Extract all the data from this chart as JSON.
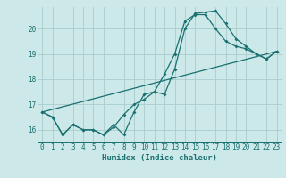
{
  "xlabel": "Humidex (Indice chaleur)",
  "bg_color": "#cce8e8",
  "grid_color": "#aacccc",
  "line_color": "#1a7070",
  "xlim": [
    -0.5,
    23.5
  ],
  "ylim": [
    15.5,
    20.85
  ],
  "yticks": [
    16,
    17,
    18,
    19,
    20
  ],
  "xticks": [
    0,
    1,
    2,
    3,
    4,
    5,
    6,
    7,
    8,
    9,
    10,
    11,
    12,
    13,
    14,
    15,
    16,
    17,
    18,
    19,
    20,
    21,
    22,
    23
  ],
  "line1_x": [
    0,
    1,
    2,
    3,
    4,
    5,
    6,
    7,
    8,
    9,
    10,
    11,
    12,
    13,
    14,
    15,
    16,
    17,
    18,
    19,
    20,
    21,
    22,
    23
  ],
  "line1_y": [
    16.7,
    16.5,
    15.8,
    16.2,
    16.0,
    16.0,
    15.8,
    16.2,
    15.8,
    16.7,
    17.4,
    17.5,
    17.4,
    18.4,
    20.0,
    20.6,
    20.65,
    20.7,
    20.2,
    19.6,
    19.3,
    19.0,
    18.8,
    19.1
  ],
  "line2_x": [
    0,
    1,
    2,
    3,
    4,
    5,
    6,
    7,
    8,
    9,
    10,
    11,
    12,
    13,
    14,
    15,
    16,
    17,
    18,
    19,
    20,
    21,
    22,
    23
  ],
  "line2_y": [
    16.7,
    16.5,
    15.8,
    16.2,
    16.0,
    16.0,
    15.8,
    16.1,
    16.6,
    17.0,
    17.2,
    17.5,
    18.2,
    19.0,
    20.3,
    20.55,
    20.55,
    20.0,
    19.5,
    19.3,
    19.2,
    19.0,
    18.8,
    19.1
  ],
  "line3_x": [
    0,
    23
  ],
  "line3_y": [
    16.7,
    19.1
  ],
  "xlabel_fontsize": 6.5,
  "tick_fontsize": 5.5
}
